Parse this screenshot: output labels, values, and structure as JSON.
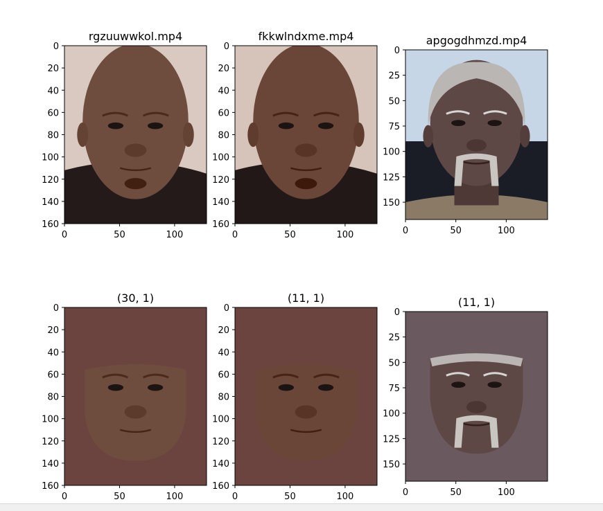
{
  "figure": {
    "panels": [
      {
        "title": "rgzuuwwkol.mp4",
        "kind": "frame",
        "skin": "#6e4c3e",
        "background": "#d9c9c0",
        "shirt": "#241a1a",
        "hair": "none",
        "mustache": false,
        "chart_data": {
          "type": "image",
          "title": "rgzuuwwkol.mp4",
          "xlim": [
            0,
            129
          ],
          "ylim": [
            160,
            0
          ],
          "xticks": [
            0,
            50,
            100
          ],
          "yticks": [
            0,
            20,
            40,
            60,
            80,
            100,
            120,
            140,
            160
          ]
        }
      },
      {
        "title": "fkkwlndxme.mp4",
        "kind": "frame",
        "skin": "#6a4638",
        "background": "#d6c4ba",
        "shirt": "#221818",
        "hair": "none",
        "mustache": false,
        "chart_data": {
          "type": "image",
          "title": "fkkwlndxme.mp4",
          "xlim": [
            0,
            129
          ],
          "ylim": [
            160,
            0
          ],
          "xticks": [
            0,
            50,
            100
          ],
          "yticks": [
            0,
            20,
            40,
            60,
            80,
            100,
            120,
            140,
            160
          ]
        }
      },
      {
        "title": "apgogdhmzd.mp4",
        "kind": "frame",
        "skin": "#5e4846",
        "background": "#c7d6e6",
        "shirt": "#8a7a66",
        "hair": "gray",
        "mustache": true,
        "chart_data": {
          "type": "image",
          "title": "apgogdhmzd.mp4",
          "xlim": [
            0,
            141
          ],
          "ylim": [
            167,
            0
          ],
          "xticks": [
            0,
            50,
            100
          ],
          "yticks": [
            0,
            25,
            50,
            75,
            100,
            125,
            150
          ]
        }
      },
      {
        "title": "(30, 1)",
        "kind": "mask",
        "skin": "#6e4c3e",
        "background": "#6b4440",
        "hair": "none",
        "mustache": false,
        "chart_data": {
          "type": "image",
          "title": "(30, 1)",
          "xlim": [
            0,
            129
          ],
          "ylim": [
            160,
            0
          ],
          "xticks": [
            0,
            50,
            100
          ],
          "yticks": [
            0,
            20,
            40,
            60,
            80,
            100,
            120,
            140,
            160
          ]
        }
      },
      {
        "title": "(11, 1)",
        "kind": "mask",
        "skin": "#6a4638",
        "background": "#6b4440",
        "hair": "none",
        "mustache": false,
        "chart_data": {
          "type": "image",
          "title": "(11, 1)",
          "xlim": [
            0,
            129
          ],
          "ylim": [
            160,
            0
          ],
          "xticks": [
            0,
            50,
            100
          ],
          "yticks": [
            0,
            20,
            40,
            60,
            80,
            100,
            120,
            140,
            160
          ]
        }
      },
      {
        "title": "(11, 1)",
        "kind": "mask",
        "skin": "#5e4846",
        "background": "#6a5a60",
        "hair": "gray",
        "mustache": true,
        "chart_data": {
          "type": "image",
          "title": "(11, 1)",
          "xlim": [
            0,
            141
          ],
          "ylim": [
            167,
            0
          ],
          "xticks": [
            0,
            50,
            100
          ],
          "yticks": [
            0,
            25,
            50,
            75,
            100,
            125,
            150
          ]
        }
      }
    ]
  }
}
